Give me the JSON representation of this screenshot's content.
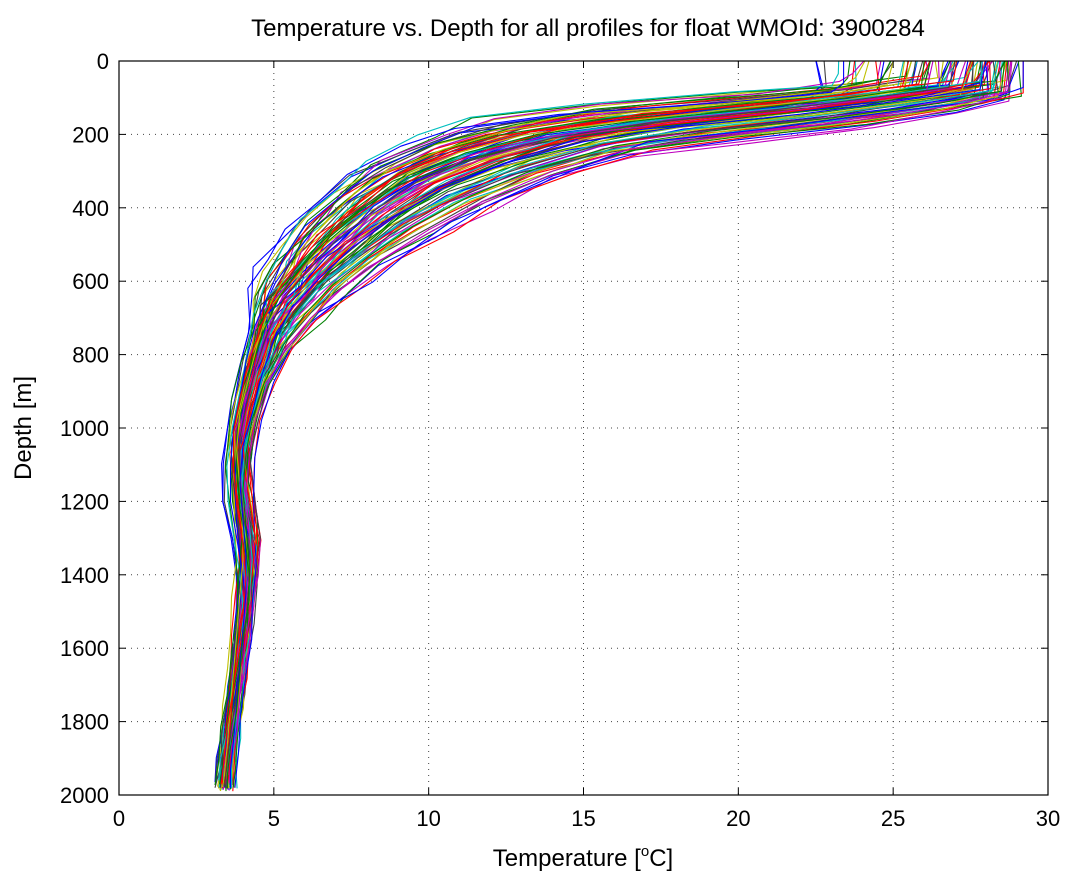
{
  "chart_data": {
    "type": "line",
    "title": "Temperature vs. Depth for all profiles for float WMOId: 3900284",
    "xlabel_prefix": "Temperature [",
    "xlabel_sup": "o",
    "xlabel_suffix": "C]",
    "ylabel": "Depth [m]",
    "xlim": [
      0,
      30
    ],
    "ylim": [
      0,
      2000
    ],
    "y_reversed": true,
    "grid": true,
    "legend": "none",
    "x_ticks": [
      "0",
      "5",
      "10",
      "15",
      "20",
      "25",
      "30"
    ],
    "y_ticks": [
      "0",
      "200",
      "400",
      "600",
      "800",
      "1000",
      "1200",
      "1400",
      "1600",
      "1800",
      "2000"
    ],
    "series_colors": [
      "#0000ff",
      "#008000",
      "#ff0000",
      "#00bfbf",
      "#bf00bf",
      "#bfbf00",
      "#404040"
    ],
    "series": [
      {
        "color": "#0000ff",
        "points": [
          [
            23.4,
            0
          ],
          [
            23.4,
            60
          ],
          [
            23.0,
            85
          ],
          [
            20.0,
            110
          ],
          [
            15.0,
            140
          ],
          [
            11.5,
            180
          ],
          [
            10.0,
            230
          ],
          [
            8.2,
            300
          ],
          [
            7.0,
            380
          ],
          [
            6.0,
            450
          ],
          [
            5.3,
            540
          ],
          [
            4.9,
            620
          ],
          [
            4.4,
            720
          ],
          [
            4.1,
            820
          ],
          [
            3.9,
            920
          ],
          [
            3.7,
            1000
          ],
          [
            3.6,
            1100
          ],
          [
            3.6,
            1200
          ],
          [
            3.8,
            1300
          ],
          [
            4.0,
            1400
          ],
          [
            4.1,
            1500
          ],
          [
            4.0,
            1600
          ],
          [
            3.8,
            1700
          ],
          [
            3.6,
            1800
          ],
          [
            3.4,
            1900
          ],
          [
            3.3,
            1960
          ]
        ]
      },
      {
        "color": "#008000",
        "points": [
          [
            26.2,
            0
          ],
          [
            26.0,
            70
          ],
          [
            24.0,
            95
          ],
          [
            20.5,
            130
          ],
          [
            16.5,
            165
          ],
          [
            13.5,
            200
          ],
          [
            11.2,
            250
          ],
          [
            9.3,
            320
          ],
          [
            7.9,
            400
          ],
          [
            6.8,
            480
          ],
          [
            5.9,
            560
          ],
          [
            5.2,
            640
          ],
          [
            4.7,
            730
          ],
          [
            4.3,
            830
          ],
          [
            4.0,
            930
          ],
          [
            3.8,
            1020
          ],
          [
            3.8,
            1120
          ],
          [
            3.9,
            1220
          ],
          [
            4.1,
            1320
          ],
          [
            4.2,
            1420
          ],
          [
            4.1,
            1520
          ],
          [
            3.9,
            1620
          ],
          [
            3.7,
            1720
          ],
          [
            3.6,
            1820
          ],
          [
            3.5,
            1900
          ],
          [
            3.4,
            1970
          ]
        ]
      },
      {
        "color": "#ff0000",
        "points": [
          [
            27.5,
            0
          ],
          [
            27.2,
            75
          ],
          [
            25.0,
            100
          ],
          [
            21.5,
            140
          ],
          [
            17.5,
            175
          ],
          [
            14.5,
            215
          ],
          [
            12.0,
            270
          ],
          [
            10.0,
            340
          ],
          [
            8.5,
            420
          ],
          [
            7.3,
            500
          ],
          [
            6.3,
            580
          ],
          [
            5.5,
            660
          ],
          [
            4.9,
            750
          ],
          [
            4.5,
            850
          ],
          [
            4.2,
            950
          ],
          [
            4.0,
            1040
          ],
          [
            4.1,
            1140
          ],
          [
            4.3,
            1240
          ],
          [
            4.4,
            1300
          ],
          [
            4.3,
            1400
          ],
          [
            4.1,
            1500
          ],
          [
            3.9,
            1600
          ],
          [
            3.7,
            1700
          ],
          [
            3.6,
            1800
          ],
          [
            3.5,
            1900
          ],
          [
            3.4,
            1975
          ]
        ]
      },
      {
        "color": "#00bfbf",
        "points": [
          [
            28.4,
            0
          ],
          [
            28.2,
            80
          ],
          [
            26.0,
            110
          ],
          [
            22.5,
            150
          ],
          [
            18.5,
            185
          ],
          [
            15.5,
            225
          ],
          [
            13.0,
            285
          ],
          [
            10.8,
            360
          ],
          [
            9.1,
            440
          ],
          [
            7.8,
            520
          ],
          [
            6.6,
            600
          ],
          [
            5.8,
            680
          ],
          [
            5.1,
            770
          ],
          [
            4.6,
            870
          ],
          [
            4.3,
            970
          ],
          [
            4.1,
            1060
          ],
          [
            4.0,
            1160
          ],
          [
            4.2,
            1260
          ],
          [
            4.3,
            1360
          ],
          [
            4.2,
            1460
          ],
          [
            4.0,
            1560
          ],
          [
            3.9,
            1660
          ],
          [
            3.8,
            1760
          ],
          [
            3.6,
            1860
          ],
          [
            3.5,
            1940
          ],
          [
            3.5,
            1980
          ]
        ]
      },
      {
        "color": "#bf00bf",
        "points": [
          [
            28.8,
            0
          ],
          [
            28.7,
            85
          ],
          [
            27.0,
            120
          ],
          [
            24.0,
            160
          ],
          [
            20.0,
            200
          ],
          [
            16.5,
            240
          ],
          [
            14.0,
            300
          ],
          [
            11.8,
            380
          ],
          [
            10.0,
            460
          ],
          [
            8.5,
            540
          ],
          [
            7.2,
            620
          ],
          [
            6.2,
            700
          ],
          [
            5.4,
            780
          ],
          [
            4.8,
            880
          ],
          [
            4.4,
            980
          ],
          [
            4.2,
            1080
          ],
          [
            4.1,
            1180
          ],
          [
            4.2,
            1280
          ],
          [
            4.2,
            1380
          ],
          [
            4.1,
            1480
          ],
          [
            4.0,
            1580
          ],
          [
            3.9,
            1680
          ],
          [
            3.7,
            1780
          ],
          [
            3.6,
            1880
          ],
          [
            3.5,
            1950
          ],
          [
            3.5,
            1985
          ]
        ]
      },
      {
        "color": "#bfbf00",
        "points": [
          [
            25.0,
            0
          ],
          [
            24.8,
            65
          ],
          [
            23.0,
            90
          ],
          [
            19.0,
            120
          ],
          [
            15.5,
            150
          ],
          [
            12.5,
            190
          ],
          [
            10.5,
            240
          ],
          [
            8.7,
            300
          ],
          [
            7.6,
            360
          ],
          [
            6.8,
            430
          ],
          [
            6.0,
            500
          ],
          [
            5.4,
            580
          ],
          [
            4.9,
            660
          ],
          [
            4.5,
            760
          ],
          [
            4.2,
            860
          ],
          [
            3.9,
            960
          ],
          [
            3.8,
            1060
          ],
          [
            3.9,
            1160
          ],
          [
            4.0,
            1260
          ],
          [
            4.0,
            1360
          ],
          [
            3.9,
            1460
          ],
          [
            3.8,
            1560
          ],
          [
            3.7,
            1660
          ],
          [
            3.6,
            1760
          ],
          [
            3.5,
            1860
          ],
          [
            3.4,
            1950
          ]
        ]
      },
      {
        "color": "#404040",
        "points": [
          [
            27.0,
            0
          ],
          [
            26.8,
            72
          ],
          [
            24.5,
            98
          ],
          [
            21.0,
            135
          ],
          [
            17.0,
            170
          ],
          [
            14.0,
            210
          ],
          [
            11.6,
            260
          ],
          [
            9.6,
            330
          ],
          [
            8.2,
            410
          ],
          [
            7.0,
            490
          ],
          [
            6.1,
            570
          ],
          [
            5.3,
            650
          ],
          [
            4.8,
            740
          ],
          [
            4.4,
            840
          ],
          [
            4.1,
            940
          ],
          [
            3.9,
            1030
          ],
          [
            3.9,
            1130
          ],
          [
            4.0,
            1230
          ],
          [
            4.2,
            1330
          ],
          [
            4.2,
            1430
          ],
          [
            4.1,
            1530
          ],
          [
            3.9,
            1630
          ],
          [
            3.8,
            1730
          ],
          [
            3.6,
            1830
          ],
          [
            3.5,
            1910
          ],
          [
            3.4,
            1978
          ]
        ]
      },
      {
        "color": "#0000ff",
        "points": [
          [
            28.0,
            0
          ],
          [
            27.8,
            78
          ],
          [
            25.5,
            105
          ],
          [
            22.0,
            145
          ],
          [
            18.0,
            180
          ],
          [
            15.0,
            220
          ],
          [
            12.5,
            278
          ],
          [
            10.4,
            350
          ],
          [
            8.8,
            430
          ],
          [
            7.5,
            510
          ],
          [
            6.5,
            590
          ],
          [
            5.6,
            670
          ],
          [
            5.0,
            760
          ],
          [
            4.6,
            860
          ],
          [
            4.3,
            960
          ],
          [
            4.0,
            1050
          ],
          [
            3.9,
            1150
          ],
          [
            4.0,
            1250
          ],
          [
            4.1,
            1350
          ],
          [
            4.1,
            1450
          ],
          [
            4.0,
            1550
          ],
          [
            3.9,
            1650
          ],
          [
            3.8,
            1750
          ],
          [
            3.7,
            1850
          ],
          [
            3.6,
            1930
          ],
          [
            3.6,
            1980
          ]
        ]
      },
      {
        "color": "#ff0000",
        "points": [
          [
            25.5,
            0
          ],
          [
            25.3,
            68
          ],
          [
            23.5,
            92
          ],
          [
            19.5,
            125
          ],
          [
            16.0,
            158
          ],
          [
            13.0,
            195
          ],
          [
            10.8,
            245
          ],
          [
            9.0,
            310
          ],
          [
            7.7,
            390
          ],
          [
            6.6,
            470
          ],
          [
            5.8,
            550
          ],
          [
            5.1,
            630
          ],
          [
            4.6,
            720
          ],
          [
            4.2,
            820
          ],
          [
            3.9,
            920
          ],
          [
            3.7,
            1010
          ],
          [
            3.7,
            1110
          ],
          [
            3.8,
            1210
          ],
          [
            4.0,
            1310
          ],
          [
            4.1,
            1410
          ],
          [
            4.0,
            1510
          ],
          [
            3.8,
            1610
          ],
          [
            3.7,
            1710
          ],
          [
            3.5,
            1810
          ],
          [
            3.4,
            1900
          ],
          [
            3.3,
            1970
          ]
        ]
      },
      {
        "color": "#008000",
        "points": [
          [
            28.6,
            0
          ],
          [
            28.5,
            82
          ],
          [
            26.5,
            115
          ],
          [
            23.0,
            155
          ],
          [
            19.0,
            192
          ],
          [
            16.0,
            232
          ],
          [
            13.5,
            292
          ],
          [
            11.3,
            370
          ],
          [
            9.5,
            450
          ],
          [
            8.1,
            530
          ],
          [
            6.9,
            610
          ],
          [
            6.0,
            690
          ],
          [
            5.3,
            775
          ],
          [
            4.7,
            875
          ],
          [
            4.3,
            975
          ],
          [
            4.1,
            1070
          ],
          [
            4.0,
            1170
          ],
          [
            4.1,
            1270
          ],
          [
            4.2,
            1370
          ],
          [
            4.2,
            1470
          ],
          [
            4.0,
            1570
          ],
          [
            3.9,
            1670
          ],
          [
            3.8,
            1770
          ],
          [
            3.6,
            1870
          ],
          [
            3.5,
            1945
          ],
          [
            3.5,
            1982
          ]
        ]
      }
    ]
  }
}
